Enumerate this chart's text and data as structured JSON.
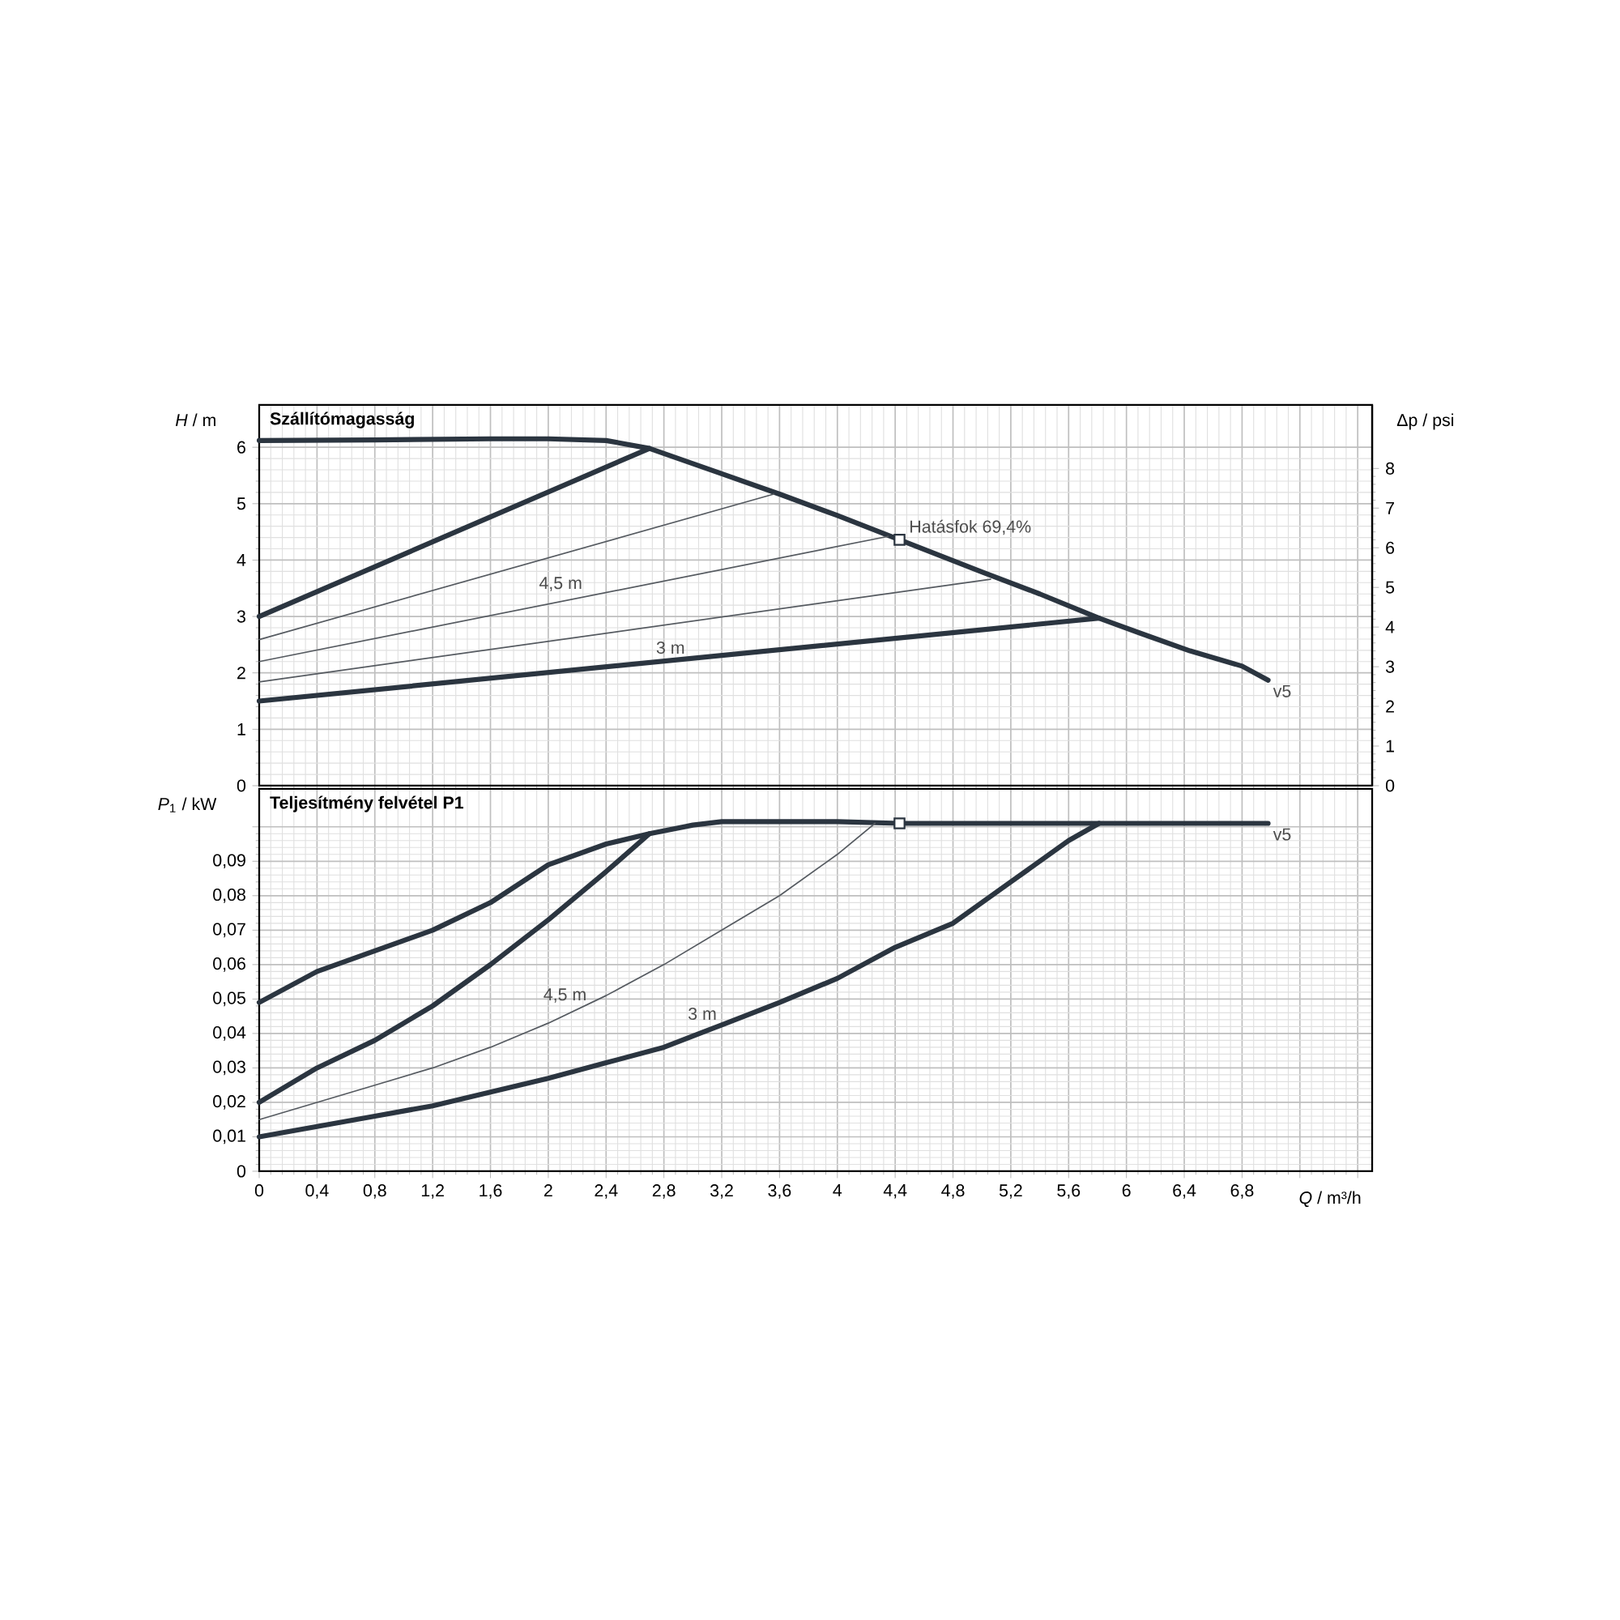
{
  "chart_data": [
    {
      "type": "line",
      "title": "Szállítómagasság",
      "ylabel": "*H* / m",
      "y2label": "Δp / psi",
      "xlim": [
        0,
        7.7
      ],
      "ylim": [
        0,
        6.75
      ],
      "y2lim": [
        0,
        9.6
      ],
      "xticks": [
        0,
        0.4,
        0.8,
        1.2,
        1.6,
        2,
        2.4,
        2.8,
        3.2,
        3.6,
        4,
        4.4,
        4.8,
        5.2,
        5.6,
        6,
        6.4,
        6.8,
        7.2,
        7.6
      ],
      "yticks": [
        0,
        1,
        2,
        3,
        4,
        5,
        6
      ],
      "y2ticks": [
        0,
        1,
        2,
        3,
        4,
        5,
        6,
        7,
        8
      ],
      "tick_labels": "y",
      "grid": true,
      "series": [
        {
          "color": "#2b3540",
          "x": [
            0,
            0.8,
            1.6,
            2.0,
            2.4,
            2.7,
            3.2,
            3.6,
            4.0,
            4.43,
            5.0,
            5.4,
            5.81,
            6.1,
            6.44,
            6.8,
            6.98
          ],
          "values": [
            6.12,
            6.13,
            6.15,
            6.15,
            6.12,
            5.98,
            5.53,
            5.17,
            4.79,
            4.36,
            3.79,
            3.4,
            2.97,
            2.7,
            2.39,
            2.12,
            1.87
          ]
        },
        {
          "color": "#2b3540",
          "x": [
            0,
            2.7
          ],
          "values": [
            3.0,
            5.98
          ]
        },
        {
          "color": "#555a60",
          "x": [
            0,
            3.56
          ],
          "values": [
            2.59,
            5.17
          ]
        },
        {
          "color": "#555a60",
          "x": [
            0,
            4.35
          ],
          "values": [
            2.2,
            4.42
          ]
        },
        {
          "color": "#555a60",
          "x": [
            0,
            5.06
          ],
          "values": [
            1.84,
            3.66
          ]
        },
        {
          "color": "#2b3540",
          "x": [
            0,
            5.81
          ],
          "values": [
            1.5,
            2.97
          ]
        },
        {
          "type": "scatter",
          "marker": "square",
          "color": "#2b3540",
          "x": [
            4.43
          ],
          "values": [
            4.36
          ]
        }
      ],
      "annotations": [
        {
          "text": "Hatásfok  69,4%",
          "x": 4.43,
          "y": 4.36
        },
        {
          "text": "4,5 m",
          "x": 2.27,
          "y": 3.36
        },
        {
          "text": "3 m",
          "x": 2.98,
          "y": 2.25
        },
        {
          "text": "v5",
          "x": 6.98,
          "y": 1.87
        }
      ]
    },
    {
      "type": "line",
      "title": "Teljesítmény felvétel P1",
      "ylabel": "*P*$_{1}$ / kW",
      "xlabel": "*Q* / m³/h",
      "xlim": [
        0,
        7.7
      ],
      "ylim": [
        0,
        0.111
      ],
      "xticks": [
        0,
        {
          "value": 0.4,
          "label": "0,4"
        },
        {
          "value": 0.8,
          "label": "0,8"
        },
        {
          "value": 1.2,
          "label": "1,2"
        },
        {
          "value": 1.6,
          "label": "1,6"
        },
        2,
        {
          "value": 2.4,
          "label": "2,4"
        },
        {
          "value": 2.8,
          "label": "2,8"
        },
        {
          "value": 3.2,
          "label": "3,2"
        },
        {
          "value": 3.6,
          "label": "3,6"
        },
        4,
        {
          "value": 4.4,
          "label": "4,4"
        },
        {
          "value": 4.8,
          "label": "4,8"
        },
        {
          "value": 5.2,
          "label": "5,2"
        },
        {
          "value": 5.6,
          "label": "5,6"
        },
        6,
        {
          "value": 6.4,
          "label": "6,4"
        },
        {
          "value": 6.8,
          "label": "6,8"
        },
        {
          "value": 7.2,
          "label": null
        },
        {
          "value": 7.6,
          "label": null
        }
      ],
      "yticks": [
        0,
        {
          "value": 0.01,
          "label": "0,01"
        },
        {
          "value": 0.02,
          "label": "0,02"
        },
        {
          "value": 0.03,
          "label": "0,03"
        },
        {
          "value": 0.04,
          "label": "0,04"
        },
        {
          "value": 0.05,
          "label": "0,05"
        },
        {
          "value": 0.06,
          "label": "0,06"
        },
        {
          "value": 0.07,
          "label": "0,07"
        },
        {
          "value": 0.08,
          "label": "0,08"
        },
        {
          "value": 0.09,
          "label": "0,09"
        },
        {
          "value": 0.1,
          "label": null
        }
      ],
      "grid": true,
      "series": [
        {
          "color": "#2b3540",
          "x": [
            0,
            0.4,
            0.8,
            1.2,
            1.6,
            2.0,
            2.4,
            2.7,
            3.0,
            3.2,
            4.0,
            4.43,
            5.0,
            6.0,
            6.98
          ],
          "values": [
            0.049,
            0.058,
            0.064,
            0.07,
            0.078,
            0.089,
            0.095,
            0.098,
            0.1005,
            0.1015,
            0.1015,
            0.101,
            0.101,
            0.101,
            0.101
          ]
        },
        {
          "color": "#2b3540",
          "x": [
            0,
            0.4,
            0.8,
            1.2,
            1.6,
            2.0,
            2.4,
            2.7
          ],
          "values": [
            0.02,
            0.03,
            0.038,
            0.048,
            0.06,
            0.073,
            0.087,
            0.098
          ]
        },
        {
          "color": "#555a60",
          "x": [
            0,
            0.4,
            0.8,
            1.2,
            1.6,
            2.0,
            2.4,
            2.8,
            3.2,
            3.6,
            4.0,
            4.26
          ],
          "values": [
            0.015,
            0.02,
            0.025,
            0.03,
            0.036,
            0.043,
            0.051,
            0.06,
            0.07,
            0.08,
            0.092,
            0.101
          ]
        },
        {
          "color": "#2b3540",
          "x": [
            0,
            0.4,
            0.8,
            1.2,
            1.6,
            2.0,
            2.4,
            2.8,
            3.2,
            3.6,
            4.0,
            4.4,
            4.8,
            5.2,
            5.6,
            5.81
          ],
          "values": [
            0.01,
            0.013,
            0.016,
            0.019,
            0.023,
            0.027,
            0.0315,
            0.036,
            0.0425,
            0.049,
            0.056,
            0.065,
            0.072,
            0.084,
            0.096,
            0.101
          ]
        },
        {
          "type": "scatter",
          "marker": "square",
          "color": "#2b3540",
          "x": [
            4.43
          ],
          "values": [
            0.101
          ]
        }
      ],
      "annotations": [
        {
          "text": "4,5 m",
          "x": 2.3,
          "y": 0.0475
        },
        {
          "text": "3 m",
          "x": 3.2,
          "y": 0.0425
        },
        {
          "text": "v5",
          "x": 6.98,
          "y": 0.101
        }
      ]
    }
  ]
}
